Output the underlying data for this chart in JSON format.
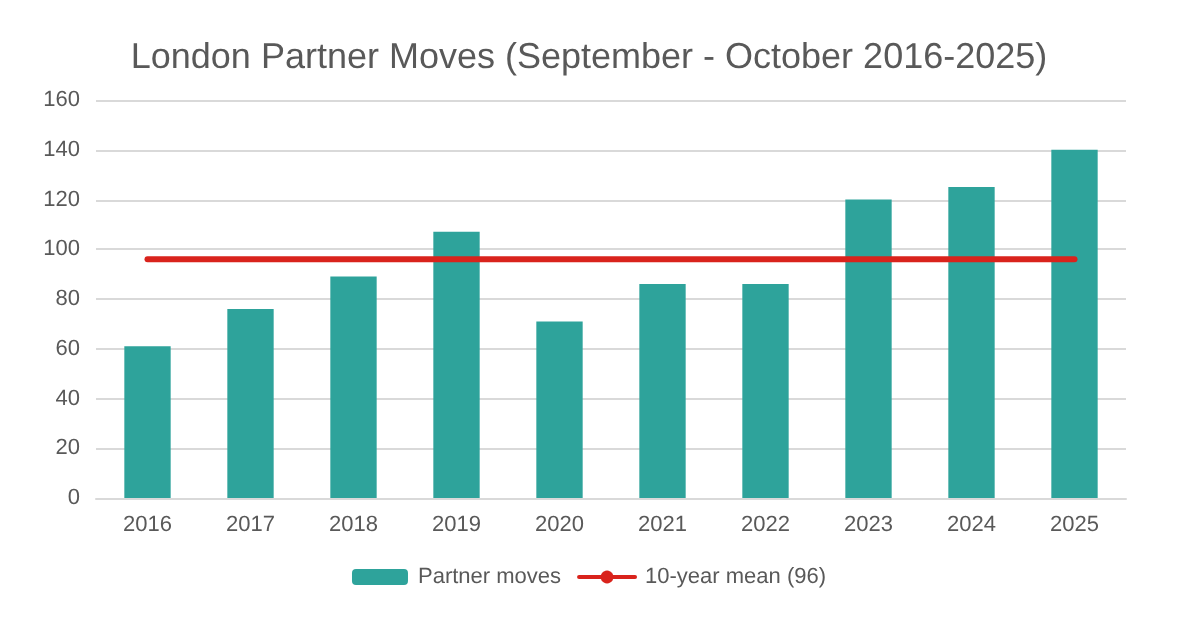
{
  "chart_data": {
    "type": "bar",
    "title": "London Partner Moves (September - October 2016-2025)",
    "categories": [
      "2016",
      "2017",
      "2018",
      "2019",
      "2020",
      "2021",
      "2022",
      "2023",
      "2024",
      "2025"
    ],
    "series": [
      {
        "name": "Partner moves",
        "color": "#2ea39b",
        "values": [
          61,
          76,
          89,
          107,
          71,
          86,
          86,
          120,
          125,
          140
        ]
      },
      {
        "name": "10-year mean (96)",
        "type": "line",
        "color": "#d9231c",
        "values": [
          96,
          96,
          96,
          96,
          96,
          96,
          96,
          96,
          96,
          96
        ]
      }
    ],
    "ylim": [
      0,
      160
    ],
    "yticks": [
      0,
      20,
      40,
      60,
      80,
      100,
      120,
      140,
      160
    ],
    "grid": "y",
    "legend": "bottom",
    "marker": "none",
    "line_style": "solid"
  }
}
